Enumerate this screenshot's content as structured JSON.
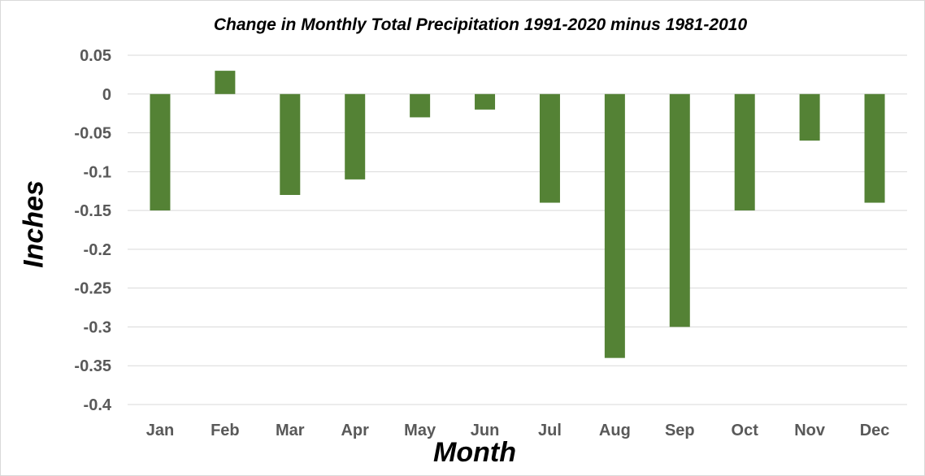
{
  "chart_data": {
    "type": "bar",
    "title": "Change in Monthly Total Precipitation 1991-2020 minus 1981-2010",
    "xlabel": "Month",
    "ylabel": "Inches",
    "categories": [
      "Jan",
      "Feb",
      "Mar",
      "Apr",
      "May",
      "Jun",
      "Jul",
      "Aug",
      "Sep",
      "Oct",
      "Nov",
      "Dec"
    ],
    "values": [
      -0.15,
      0.03,
      -0.13,
      -0.11,
      -0.03,
      -0.02,
      -0.14,
      -0.34,
      -0.3,
      -0.15,
      -0.06,
      -0.14
    ],
    "ylim": [
      -0.4,
      0.05
    ],
    "yticks": [
      0.05,
      0,
      -0.05,
      -0.1,
      -0.15,
      -0.2,
      -0.25,
      -0.3,
      -0.35,
      -0.4
    ],
    "ytick_labels": [
      "0.05",
      "0",
      "-0.05",
      "-0.1",
      "-0.15",
      "-0.2",
      "-0.25",
      "-0.3",
      "-0.35",
      "-0.4"
    ],
    "grid": true,
    "legend": "none",
    "bar_color": "#548235",
    "grid_color": "#d9d9d9"
  }
}
